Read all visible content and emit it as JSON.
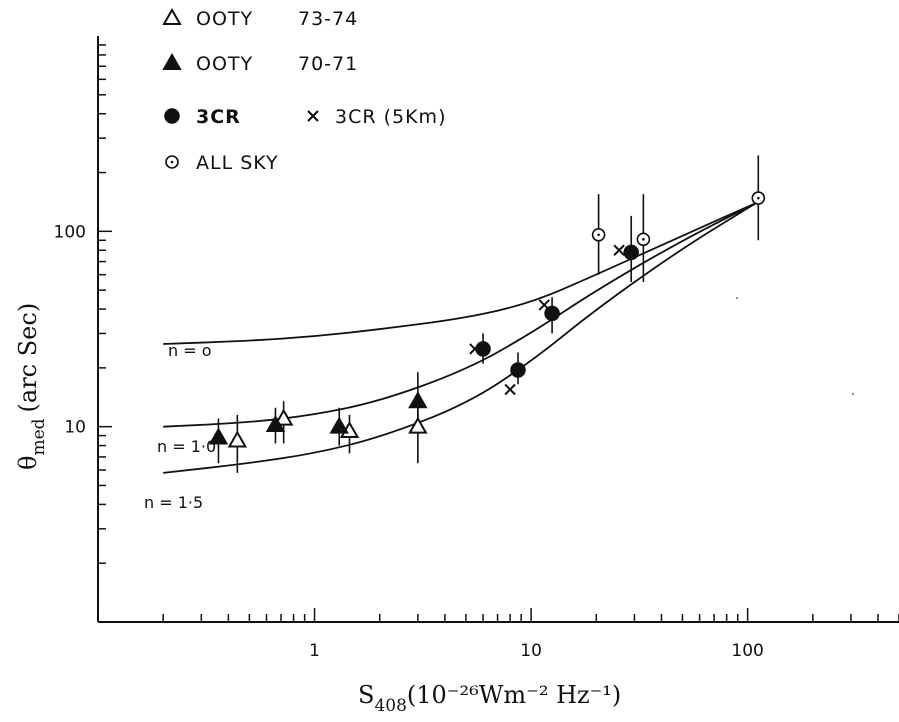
{
  "chart_data": {
    "type": "scatter",
    "x_scale": "log",
    "y_scale": "log",
    "xlim": [
      0.1,
      500
    ],
    "ylim": [
      1,
      1000
    ],
    "xlabel": {
      "base": "S",
      "subscript": "408",
      "unit": "(10⁻²⁶Wm⁻² Hz⁻¹)"
    },
    "ylabel": {
      "base": "θ",
      "subscript": "med",
      "unit": "(arc Sec)"
    },
    "x_tick_labels": [
      {
        "value": 1,
        "label": "1"
      },
      {
        "value": 10,
        "label": "10"
      },
      {
        "value": 100,
        "label": "100"
      }
    ],
    "y_tick_labels": [
      {
        "value": 10,
        "label": "10"
      },
      {
        "value": 100,
        "label": "100"
      }
    ],
    "legend_position": "top-left",
    "legend": [
      {
        "marker": "triangle-open",
        "name": "OOTY",
        "detail": "73-74",
        "bold": false
      },
      {
        "marker": "triangle-filled",
        "name": "OOTY",
        "detail": "70-71",
        "bold": false
      },
      {
        "marker": "circle-filled",
        "name": "3CR",
        "detail": "",
        "bold": true
      },
      {
        "marker": "cross",
        "name": "3CR (5Km)",
        "detail": "",
        "bold": false
      },
      {
        "marker": "circle-open",
        "name": "ALL SKY",
        "detail": "",
        "bold": false
      }
    ],
    "series": [
      {
        "name": "OOTY 73-74",
        "marker": "triangle-open",
        "points": [
          {
            "x": 0.44,
            "y": 8.5,
            "lo": 5.8,
            "hi": 11.5
          },
          {
            "x": 0.72,
            "y": 11.0,
            "lo": 8.2,
            "hi": 13.5
          },
          {
            "x": 1.45,
            "y": 9.5,
            "lo": 7.3,
            "hi": 11.5
          },
          {
            "x": 3.0,
            "y": 10.0,
            "lo": 6.5,
            "hi": 14.0
          }
        ]
      },
      {
        "name": "OOTY 70-71",
        "marker": "triangle-filled",
        "points": [
          {
            "x": 0.36,
            "y": 8.8,
            "lo": 6.5,
            "hi": 11.0
          },
          {
            "x": 0.66,
            "y": 10.2,
            "lo": 8.2,
            "hi": 12.5
          },
          {
            "x": 1.3,
            "y": 10.0,
            "lo": 8.0,
            "hi": 12.5
          },
          {
            "x": 3.0,
            "y": 13.5,
            "lo": 10.0,
            "hi": 19.0
          }
        ]
      },
      {
        "name": "3CR",
        "marker": "circle-filled",
        "points": [
          {
            "x": 6.0,
            "y": 25.0,
            "lo": 21.0,
            "hi": 30.0
          },
          {
            "x": 8.7,
            "y": 19.5,
            "lo": 16.5,
            "hi": 24.0
          },
          {
            "x": 12.5,
            "y": 38.0,
            "lo": 30.0,
            "hi": 46.0
          },
          {
            "x": 29.0,
            "y": 78.0,
            "lo": 55.0,
            "hi": 120.0
          }
        ]
      },
      {
        "name": "3CR (5Km)",
        "marker": "cross",
        "points": [
          {
            "x": 5.5,
            "y": 25.0
          },
          {
            "x": 8.0,
            "y": 15.5
          },
          {
            "x": 11.5,
            "y": 42.0
          },
          {
            "x": 25.5,
            "y": 80.0
          }
        ]
      },
      {
        "name": "ALL SKY",
        "marker": "circle-open",
        "points": [
          {
            "x": 20.5,
            "y": 96.0,
            "lo": 60.0,
            "hi": 155.0
          },
          {
            "x": 33.0,
            "y": 91.0,
            "lo": 55.0,
            "hi": 155.0
          },
          {
            "x": 112.0,
            "y": 148.0,
            "lo": 90.0,
            "hi": 245.0
          }
        ]
      }
    ],
    "curves": [
      {
        "label": "n = o",
        "points": [
          [
            0.2,
            26.5
          ],
          [
            0.5,
            27.5
          ],
          [
            1,
            29
          ],
          [
            2,
            31.5
          ],
          [
            5,
            36
          ],
          [
            10,
            43
          ],
          [
            20,
            60
          ],
          [
            50,
            95
          ],
          [
            110,
            140
          ]
        ]
      },
      {
        "label": "n = 1·0",
        "points": [
          [
            0.2,
            10
          ],
          [
            0.5,
            10.5
          ],
          [
            1,
            11.5
          ],
          [
            2,
            13.5
          ],
          [
            5,
            19.5
          ],
          [
            10,
            30
          ],
          [
            20,
            50
          ],
          [
            50,
            90
          ],
          [
            110,
            140
          ]
        ]
      },
      {
        "label": "n = 1·5",
        "points": [
          [
            0.2,
            5.8
          ],
          [
            0.5,
            6.5
          ],
          [
            1,
            7.3
          ],
          [
            2,
            8.8
          ],
          [
            5,
            13
          ],
          [
            10,
            21.5
          ],
          [
            20,
            40
          ],
          [
            50,
            82
          ],
          [
            110,
            140
          ]
        ]
      }
    ]
  }
}
